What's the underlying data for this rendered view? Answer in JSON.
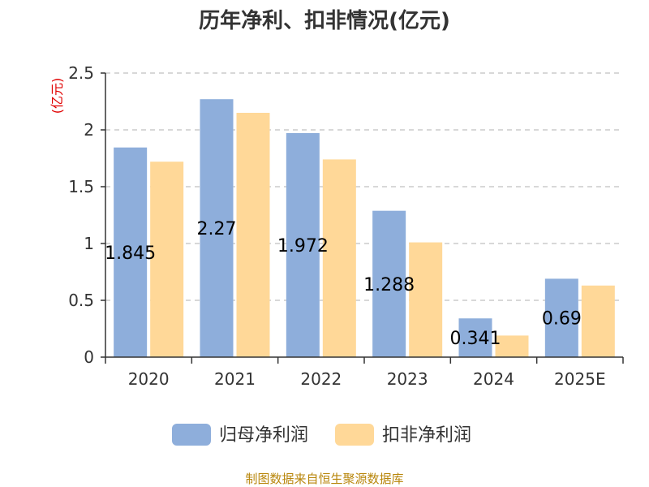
{
  "chart_data": {
    "type": "bar",
    "title": "历年净利、扣非情况(亿元)",
    "unit_label": "(亿元)",
    "categories": [
      "2020",
      "2021",
      "2022",
      "2023",
      "2024",
      "2025E"
    ],
    "series": [
      {
        "name": "归母净利润",
        "values": [
          1.845,
          2.27,
          1.972,
          1.288,
          0.341,
          0.69
        ],
        "color": "#8eaedb",
        "show_labels": true
      },
      {
        "name": "扣非净利润",
        "values": [
          1.72,
          2.15,
          1.74,
          1.01,
          0.19,
          0.63
        ],
        "color": "#ffd898",
        "show_labels": false
      }
    ],
    "ylim": [
      0,
      2.5
    ],
    "yticks": [
      "0",
      "0.5",
      "1",
      "1.5",
      "2",
      "2.5"
    ],
    "grid": true,
    "legend_position": "bottom"
  },
  "footer": {
    "source": "制图数据来自恒生聚源数据库"
  }
}
